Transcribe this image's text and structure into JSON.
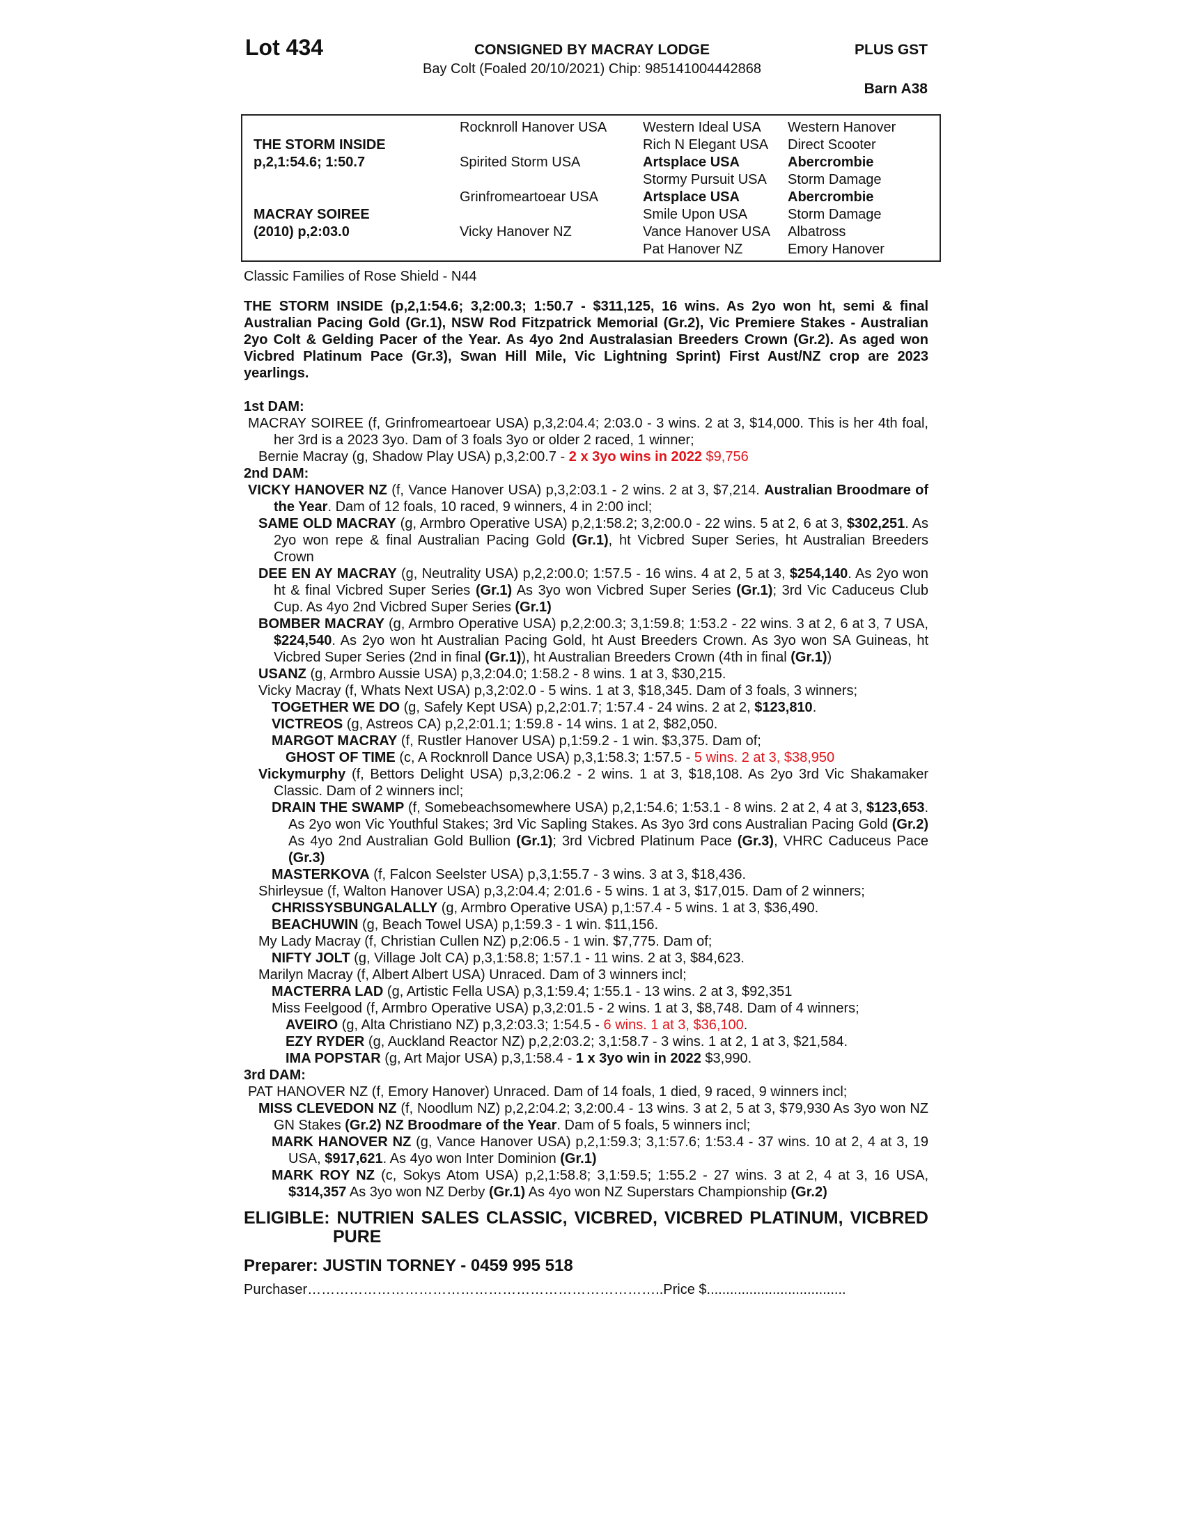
{
  "header": {
    "lot": "Lot 434",
    "consigned": "CONSIGNED BY MACRAY LODGE",
    "plus_gst": "PLUS GST",
    "horse_info": "Bay Colt (Foaled 20/10/2021) Chip: 985141004442868",
    "barn": "Barn A38"
  },
  "pedigree": {
    "sire": {
      "name": "THE STORM INSIDE",
      "record": "p,2,1:54.6; 1:50.7"
    },
    "dam": {
      "name": "MACRAY SOIREE",
      "record": "(2010) p,2:03.0"
    },
    "gen2": [
      "Rocknroll Hanover USA",
      "Spirited Storm USA",
      "Grinfromeartoear USA",
      "Vicky Hanover NZ"
    ],
    "gen3": [
      {
        "text": "Western Ideal USA",
        "bold": false
      },
      {
        "text": "Rich N Elegant USA",
        "bold": false
      },
      {
        "text": "Artsplace USA",
        "bold": true
      },
      {
        "text": "Stormy Pursuit USA",
        "bold": false
      },
      {
        "text": "Artsplace USA",
        "bold": true
      },
      {
        "text": "Smile Upon USA",
        "bold": false
      },
      {
        "text": "Vance Hanover USA",
        "bold": false
      },
      {
        "text": "Pat Hanover NZ",
        "bold": false
      }
    ],
    "gen4": [
      {
        "text": "Western Hanover",
        "bold": false
      },
      {
        "text": "Direct Scooter",
        "bold": false
      },
      {
        "text": "Abercrombie",
        "bold": true
      },
      {
        "text": "Storm Damage",
        "bold": false
      },
      {
        "text": "Abercrombie",
        "bold": true
      },
      {
        "text": "Storm Damage",
        "bold": false
      },
      {
        "text": "Albatross",
        "bold": false
      },
      {
        "text": "Emory Hanover",
        "bold": false
      }
    ]
  },
  "family": "Classic Families of Rose Shield - N44",
  "sire_summary": "THE STORM INSIDE (p,2,1:54.6; 3,2:00.3; 1:50.7 - $311,125, 16 wins. As 2yo won ht, semi & final Australian Pacing Gold (Gr.1), NSW Rod Fitzpatrick Memorial (Gr.2), Vic Premiere Stakes - Australian 2yo Colt & Gelding Pacer of the Year. As 4yo 2nd Australasian Breeders Crown (Gr.2). As aged won Vicbred Platinum Pace (Gr.3), Swan Hill Mile, Vic Lightning Sprint) First Aust/NZ  crop are 2023 yearlings.",
  "dams": [
    {
      "heading": "1st DAM:",
      "entries": [
        {
          "level": 0,
          "segments": [
            {
              "text": "MACRAY SOIREE (f, Grinfromeartoear USA) p,3,2:04.4; 2:03.0 - 3 wins. 2 at 3, $14,000. This is her 4th foal, her 3rd is a 2023 3yo. Dam of 3 foals 3yo or older 2 raced, 1 winner;",
              "style": ""
            }
          ]
        },
        {
          "level": 1,
          "segments": [
            {
              "text": "Bernie Macray (g, Shadow Play USA) p,3,2:00.7 - ",
              "style": ""
            },
            {
              "text": "2 x 3yo wins in 2022",
              "style": "b r"
            },
            {
              "text": " $9,756",
              "style": "r"
            }
          ]
        }
      ]
    },
    {
      "heading": "2nd DAM:",
      "entries": [
        {
          "level": 0,
          "segments": [
            {
              "text": "VICKY HANOVER NZ",
              "style": "b"
            },
            {
              "text": " (f, Vance Hanover USA) p,3,2:03.1 - 2 wins. 2 at 3, $7,214. ",
              "style": ""
            },
            {
              "text": "Australian Broodmare of the Year",
              "style": "b"
            },
            {
              "text": ". Dam of 12 foals, 10 raced, 9 winners, 4 in 2:00 incl;",
              "style": ""
            }
          ]
        },
        {
          "level": 1,
          "segments": [
            {
              "text": "SAME OLD MACRAY",
              "style": "b"
            },
            {
              "text": " (g, Armbro Operative USA) p,2,1:58.2; 3,2:00.0 - 22 wins. 5 at 2, 6 at 3, ",
              "style": ""
            },
            {
              "text": "$302,251",
              "style": "b"
            },
            {
              "text": ". As 2yo won repe & final Australian Pacing Gold ",
              "style": ""
            },
            {
              "text": "(Gr.1)",
              "style": "b"
            },
            {
              "text": ", ht Vicbred Super Series, ht Australian Breeders Crown",
              "style": ""
            }
          ]
        },
        {
          "level": 1,
          "segments": [
            {
              "text": "DEE EN AY MACRAY",
              "style": "b"
            },
            {
              "text": " (g, Neutrality USA) p,2,2:00.0; 1:57.5 - 16 wins. 4 at 2, 5 at 3, ",
              "style": ""
            },
            {
              "text": "$254,140",
              "style": "b"
            },
            {
              "text": ". As 2yo won ht & final Vicbred Super Series ",
              "style": ""
            },
            {
              "text": "(Gr.1)",
              "style": "b"
            },
            {
              "text": " As 3yo won Vicbred Super Series ",
              "style": ""
            },
            {
              "text": "(Gr.1)",
              "style": "b"
            },
            {
              "text": "; 3rd Vic Caduceus Club Cup. As 4yo 2nd Vicbred Super Series ",
              "style": ""
            },
            {
              "text": "(Gr.1)",
              "style": "b"
            }
          ]
        },
        {
          "level": 1,
          "segments": [
            {
              "text": "BOMBER MACRAY",
              "style": "b"
            },
            {
              "text": " (g, Armbro Operative USA) p,2,2:00.3; 3,1:59.8; 1:53.2 - 22 wins. 3 at 2, 6 at 3, 7 USA, ",
              "style": ""
            },
            {
              "text": "$224,540",
              "style": "b"
            },
            {
              "text": ". As 2yo won ht Australian Pacing Gold, ht Aust Breeders Crown. As 3yo won SA Guineas, ht Vicbred Super Series (2nd in final ",
              "style": ""
            },
            {
              "text": "(Gr.1)",
              "style": "b"
            },
            {
              "text": "), ht Australian Breeders Crown (4th in final ",
              "style": ""
            },
            {
              "text": "(Gr.1)",
              "style": "b"
            },
            {
              "text": ")",
              "style": ""
            }
          ]
        },
        {
          "level": 1,
          "segments": [
            {
              "text": "USANZ",
              "style": "b"
            },
            {
              "text": " (g, Armbro Aussie USA) p,3,2:04.0; 1:58.2 - 8 wins. 1 at 3, $30,215.",
              "style": ""
            }
          ]
        },
        {
          "level": 1,
          "segments": [
            {
              "text": "Vicky Macray (f, Whats Next USA) p,3,2:02.0 - 5 wins. 1 at 3, $18,345. Dam of 3 foals, 3 winners;",
              "style": ""
            }
          ]
        },
        {
          "level": 2,
          "segments": [
            {
              "text": "TOGETHER WE DO",
              "style": "b"
            },
            {
              "text": " (g, Safely Kept USA) p,2,2:01.7; 1:57.4 - 24 wins. 2 at 2, ",
              "style": ""
            },
            {
              "text": "$123,810",
              "style": "b"
            },
            {
              "text": ".",
              "style": ""
            }
          ]
        },
        {
          "level": 2,
          "segments": [
            {
              "text": "VICTREOS",
              "style": "b"
            },
            {
              "text": " (g, Astreos CA) p,2,2:01.1; 1:59.8 - 14 wins. 1 at 2, $82,050.",
              "style": ""
            }
          ]
        },
        {
          "level": 2,
          "segments": [
            {
              "text": "MARGOT MACRAY",
              "style": "b"
            },
            {
              "text": " (f, Rustler Hanover USA) p,1:59.2 - 1 win. $3,375. Dam of;",
              "style": ""
            }
          ]
        },
        {
          "level": 3,
          "segments": [
            {
              "text": "GHOST OF TIME",
              "style": "b"
            },
            {
              "text": " (c, A Rocknroll Dance USA) p,3,1:58.3; 1:57.5 - ",
              "style": ""
            },
            {
              "text": "5 wins. 2 at 3, $38,950",
              "style": "r"
            }
          ]
        },
        {
          "level": 1,
          "segments": [
            {
              "text": "Vickymurphy",
              "style": "b"
            },
            {
              "text": " (f, Bettors Delight USA) p,3,2:06.2 - 2 wins. 1 at 3, $18,108. As 2yo 3rd Vic Shakamaker Classic. Dam of 2 winners incl;",
              "style": ""
            }
          ]
        },
        {
          "level": 2,
          "segments": [
            {
              "text": "DRAIN THE SWAMP",
              "style": "b"
            },
            {
              "text": " (f, Somebeachsomewhere USA) p,2,1:54.6; 1:53.1 - 8 wins. 2 at 2, 4 at 3, ",
              "style": ""
            },
            {
              "text": "$123,653",
              "style": "b"
            },
            {
              "text": ". As 2yo won Vic Youthful Stakes; 3rd Vic Sapling Stakes. As 3yo 3rd cons Australian Pacing Gold ",
              "style": ""
            },
            {
              "text": "(Gr.2)",
              "style": "b"
            },
            {
              "text": " As 4yo 2nd Australian Gold Bullion ",
              "style": ""
            },
            {
              "text": "(Gr.1)",
              "style": "b"
            },
            {
              "text": "; 3rd Vicbred Platinum Pace ",
              "style": ""
            },
            {
              "text": "(Gr.3)",
              "style": "b"
            },
            {
              "text": ", VHRC Caduceus Pace ",
              "style": ""
            },
            {
              "text": "(Gr.3)",
              "style": "b"
            }
          ]
        },
        {
          "level": 2,
          "segments": [
            {
              "text": "MASTERKOVA",
              "style": "b"
            },
            {
              "text": " (f, Falcon Seelster USA) p,3,1:55.7 - 3 wins. 3 at 3, $18,436.",
              "style": ""
            }
          ]
        },
        {
          "level": 1,
          "segments": [
            {
              "text": "Shirleysue (f, Walton Hanover USA) p,3,2:04.4; 2:01.6 - 5 wins. 1 at 3, $17,015. Dam of 2 winners;",
              "style": ""
            }
          ]
        },
        {
          "level": 2,
          "segments": [
            {
              "text": "CHRISSYSBUNGALALLY",
              "style": "b"
            },
            {
              "text": " (g, Armbro Operative USA) p,1:57.4 - 5 wins. 1 at 3, $36,490.",
              "style": ""
            }
          ]
        },
        {
          "level": 2,
          "segments": [
            {
              "text": "BEACHUWIN",
              "style": "b"
            },
            {
              "text": " (g, Beach Towel USA) p,1:59.3 - 1 win. $11,156.",
              "style": ""
            }
          ]
        },
        {
          "level": 1,
          "segments": [
            {
              "text": "My Lady Macray (f, Christian Cullen NZ) p,2:06.5 - 1 win. $7,775. Dam of;",
              "style": ""
            }
          ]
        },
        {
          "level": 2,
          "segments": [
            {
              "text": "NIFTY JOLT",
              "style": "b"
            },
            {
              "text": " (g, Village Jolt CA) p,3,1:58.8; 1:57.1 - 11 wins. 2 at 3, $84,623.",
              "style": ""
            }
          ]
        },
        {
          "level": 1,
          "segments": [
            {
              "text": "Marilyn Macray (f, Albert Albert USA) Unraced. Dam of 3 winners incl;",
              "style": ""
            }
          ]
        },
        {
          "level": 2,
          "segments": [
            {
              "text": "MACTERRA LAD",
              "style": "b"
            },
            {
              "text": " (g, Artistic Fella USA) p,3,1:59.4; 1:55.1 - 13 wins. 2 at 3, $92,351",
              "style": ""
            }
          ]
        },
        {
          "level": 2,
          "segments": [
            {
              "text": "Miss Feelgood (f, Armbro Operative USA) p,3,2:01.5 - 2 wins. 1 at 3, $8,748. Dam of 4 winners;",
              "style": ""
            }
          ]
        },
        {
          "level": 3,
          "segments": [
            {
              "text": "AVEIRO",
              "style": "b"
            },
            {
              "text": " (g, Alta Christiano NZ) p,3,2:03.3; 1:54.5 - ",
              "style": ""
            },
            {
              "text": "6 wins. 1 at 3, $36,100",
              "style": "r"
            },
            {
              "text": ".",
              "style": ""
            }
          ]
        },
        {
          "level": 3,
          "segments": [
            {
              "text": "EZY RYDER",
              "style": "b"
            },
            {
              "text": " (g, Auckland Reactor NZ) p,2,2:03.2; 3,1:58.7 - 3 wins. 1 at 2, 1 at 3, $21,584.",
              "style": ""
            }
          ]
        },
        {
          "level": 3,
          "segments": [
            {
              "text": "IMA POPSTAR",
              "style": "b"
            },
            {
              "text": " (g, Art Major USA) p,3,1:58.4 - ",
              "style": ""
            },
            {
              "text": "1 x 3yo win in 2022",
              "style": "b"
            },
            {
              "text": " $3,990.",
              "style": ""
            }
          ]
        }
      ]
    },
    {
      "heading": "3rd DAM:",
      "entries": [
        {
          "level": 0,
          "segments": [
            {
              "text": "PAT HANOVER NZ (f, Emory Hanover) Unraced. Dam of 14 foals, 1 died, 9 raced, 9 winners incl;",
              "style": ""
            }
          ]
        },
        {
          "level": 1,
          "segments": [
            {
              "text": "MISS CLEVEDON NZ",
              "style": "b"
            },
            {
              "text": " (f, Noodlum NZ) p,2,2:04.2; 3,2:00.4 - 13 wins. 3 at 2, 5 at 3, $79,930 As 3yo won NZ GN Stakes ",
              "style": ""
            },
            {
              "text": "(Gr.2) NZ Broodmare of the Year",
              "style": "b"
            },
            {
              "text": ". Dam of 5 foals, 5 winners incl;",
              "style": ""
            }
          ]
        },
        {
          "level": 2,
          "segments": [
            {
              "text": "MARK HANOVER NZ",
              "style": "b"
            },
            {
              "text": " (g, Vance Hanover USA) p,2,1:59.3; 3,1:57.6; 1:53.4 - 37 wins. 10 at 2, 4 at 3, 19 USA, ",
              "style": ""
            },
            {
              "text": "$917,621",
              "style": "b"
            },
            {
              "text": ". As 4yo won Inter Dominion ",
              "style": ""
            },
            {
              "text": "(Gr.1)",
              "style": "b"
            }
          ]
        },
        {
          "level": 2,
          "segments": [
            {
              "text": "MARK ROY NZ",
              "style": "b"
            },
            {
              "text": " (c, Sokys Atom USA) p,2,1:58.8; 3,1:59.5; 1:55.2 - 27 wins. 3 at 2, 4 at 3, 16 USA, ",
              "style": ""
            },
            {
              "text": "$314,357",
              "style": "b"
            },
            {
              "text": " As 3yo won NZ Derby ",
              "style": ""
            },
            {
              "text": "(Gr.1)",
              "style": "b"
            },
            {
              "text": " As 4yo won NZ Superstars Championship ",
              "style": ""
            },
            {
              "text": "(Gr.2)",
              "style": "b"
            }
          ]
        }
      ]
    }
  ],
  "eligible": "ELIGIBLE: NUTRIEN SALES CLASSIC, VICBRED, VICBRED PLATINUM, VICBRED PURE",
  "preparer": "Preparer: JUSTIN TORNEY - 0459 995 518",
  "purchaser_line": "Purchaser…………………………………………………………………..Price $....................................",
  "colors": {
    "highlight_red": "#e0141a",
    "text": "#111111"
  }
}
